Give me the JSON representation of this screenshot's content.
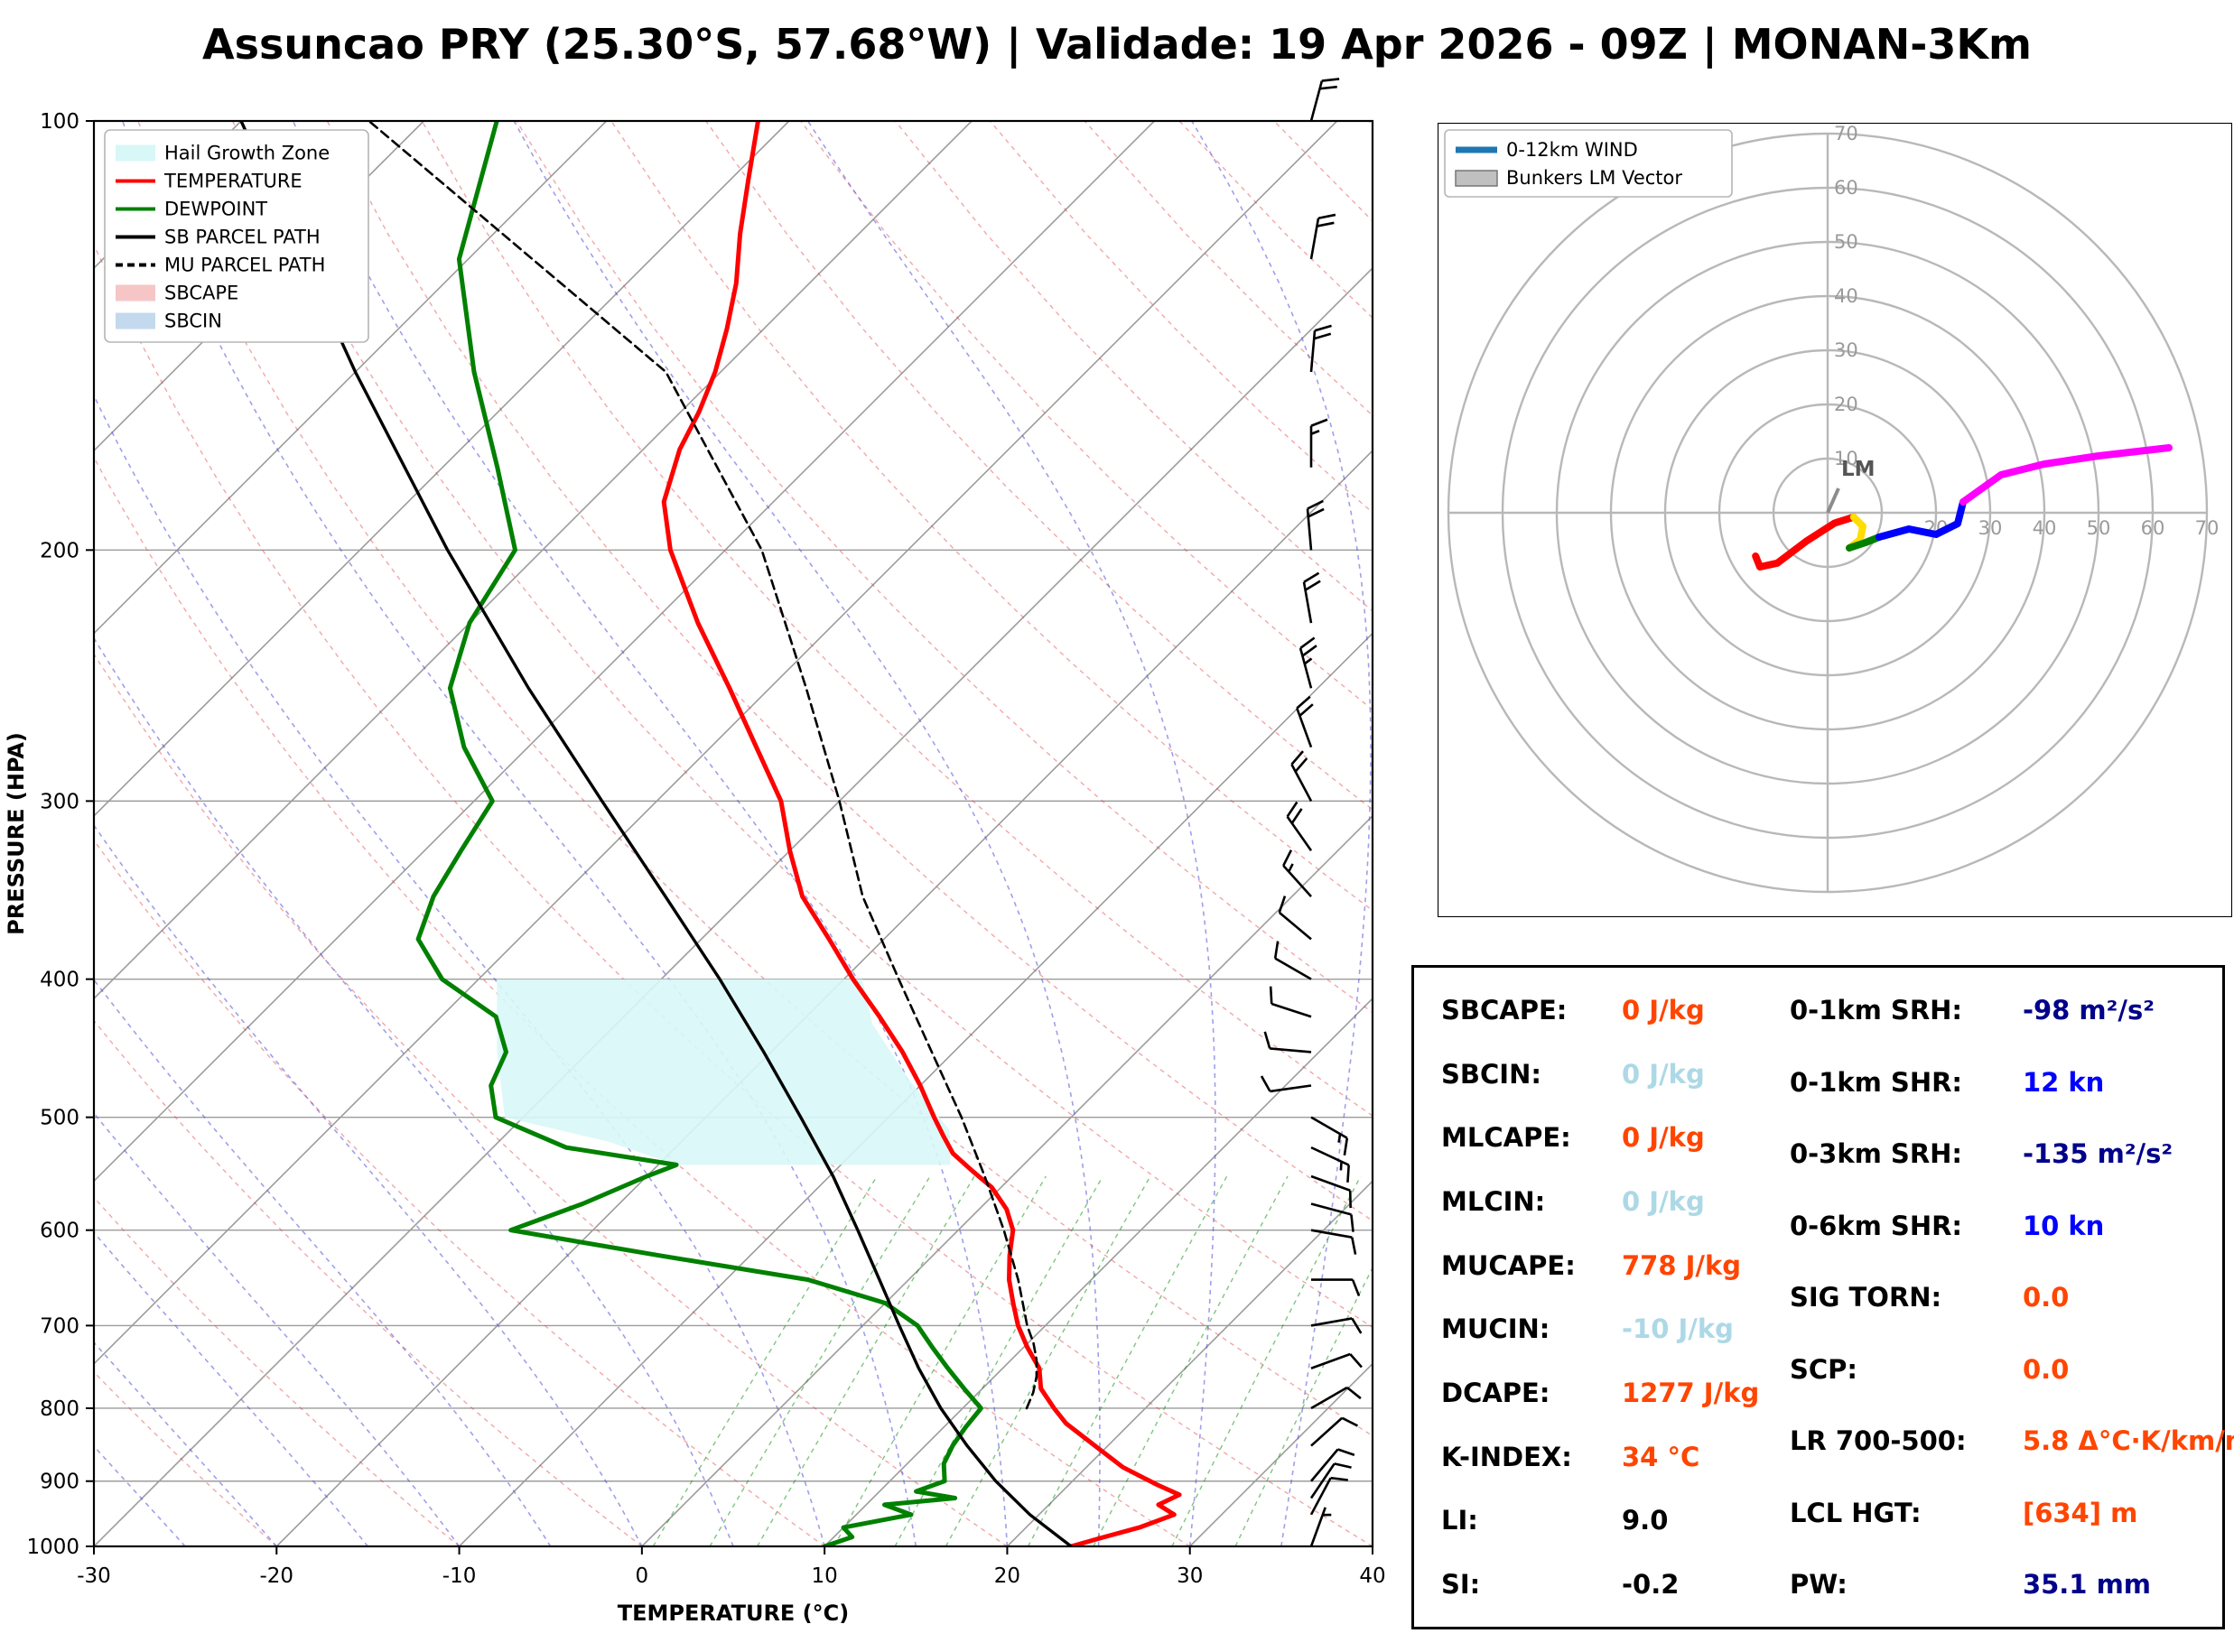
{
  "title": "Assuncao PRY (25.30°S, 57.68°W) | Validade: 19 Apr 2026 - 09Z | MONAN-3Km",
  "colors": {
    "temperature": "#ff0000",
    "dewpoint": "#008000",
    "parcel": "#000000",
    "hail_zone": "#d8f7f7",
    "sbcape_patch": "#f6c6c6",
    "sbcin_patch": "#c3d9ee",
    "orange_value": "#ff4500",
    "lightblue_value": "#add8e6",
    "navy_value": "#00008b",
    "blue_value": "#0000ff",
    "grid_gray": "#999999",
    "hodo_blue": "#1f77b4"
  },
  "chart_data": [
    {
      "type": "line",
      "title": "Skew-T Log-P sounding",
      "xlabel": "TEMPERATURE (°C)",
      "ylabel": "PRESSURE (HPA)",
      "xlim": [
        -30,
        40
      ],
      "ylim": [
        1000,
        100
      ],
      "x_ticks": [
        -30,
        -20,
        -10,
        0,
        10,
        20,
        30,
        40
      ],
      "y_ticks": [
        100,
        200,
        300,
        400,
        500,
        600,
        700,
        800,
        900,
        1000
      ],
      "skew_deg": 45,
      "grid": true,
      "legend_position": "upper left",
      "legend": [
        {
          "label": "Hail Growth Zone",
          "type": "patch",
          "color": "#d8f7f7"
        },
        {
          "label": "TEMPERATURE",
          "type": "line",
          "color": "#ff0000"
        },
        {
          "label": "DEWPOINT",
          "type": "line",
          "color": "#008000"
        },
        {
          "label": "SB PARCEL PATH",
          "type": "line",
          "color": "#000000"
        },
        {
          "label": "MU PARCEL PATH",
          "type": "dashed",
          "color": "#000000"
        },
        {
          "label": "SBCAPE",
          "type": "patch",
          "color": "#f6c6c6"
        },
        {
          "label": "SBCIN",
          "type": "patch",
          "color": "#c3d9ee"
        }
      ],
      "series": [
        {
          "name": "TEMPERATURE",
          "color": "#ff0000",
          "style": "solid",
          "width": 5,
          "points": [
            [
              1000,
              23.5
            ],
            [
              985,
              24.8
            ],
            [
              970,
              26.2
            ],
            [
              950,
              27.4
            ],
            [
              935,
              26.0
            ],
            [
              920,
              26.6
            ],
            [
              905,
              24.8
            ],
            [
              880,
              22.0
            ],
            [
              850,
              19.3
            ],
            [
              820,
              16.5
            ],
            [
              800,
              15.0
            ],
            [
              775,
              13.2
            ],
            [
              750,
              12.0
            ],
            [
              725,
              10.2
            ],
            [
              700,
              8.5
            ],
            [
              675,
              7.0
            ],
            [
              650,
              5.5
            ],
            [
              625,
              4.2
            ],
            [
              600,
              3.0
            ],
            [
              580,
              1.5
            ],
            [
              560,
              -0.5
            ],
            [
              545,
              -2.5
            ],
            [
              530,
              -4.5
            ],
            [
              515,
              -6.0
            ],
            [
              500,
              -7.5
            ],
            [
              475,
              -10.0
            ],
            [
              450,
              -12.8
            ],
            [
              425,
              -16.0
            ],
            [
              400,
              -19.5
            ],
            [
              375,
              -23.0
            ],
            [
              350,
              -26.8
            ],
            [
              325,
              -30.0
            ],
            [
              300,
              -33.2
            ],
            [
              275,
              -37.5
            ],
            [
              250,
              -42.2
            ],
            [
              225,
              -47.5
            ],
            [
              200,
              -53.0
            ],
            [
              185,
              -56.0
            ],
            [
              170,
              -58.0
            ],
            [
              160,
              -59.0
            ],
            [
              150,
              -60.3
            ],
            [
              140,
              -62.0
            ],
            [
              130,
              -64.0
            ],
            [
              120,
              -66.5
            ],
            [
              110,
              -69.0
            ],
            [
              100,
              -71.7
            ]
          ]
        },
        {
          "name": "DEWPOINT",
          "color": "#008000",
          "style": "solid",
          "width": 5,
          "points": [
            [
              1000,
              10.0
            ],
            [
              985,
              11.0
            ],
            [
              970,
              10.0
            ],
            [
              950,
              13.0
            ],
            [
              935,
              11.0
            ],
            [
              925,
              14.5
            ],
            [
              915,
              12.0
            ],
            [
              900,
              13.0
            ],
            [
              875,
              12.0
            ],
            [
              850,
              11.5
            ],
            [
              825,
              11.2
            ],
            [
              800,
              11.0
            ],
            [
              775,
              9.0
            ],
            [
              750,
              7.0
            ],
            [
              725,
              5.0
            ],
            [
              700,
              3.0
            ],
            [
              675,
              0.0
            ],
            [
              650,
              -5.5
            ],
            [
              625,
              -15.0
            ],
            [
              600,
              -24.5
            ],
            [
              575,
              -22.0
            ],
            [
              550,
              -20.0
            ],
            [
              540,
              -19.0
            ],
            [
              525,
              -26.0
            ],
            [
              500,
              -31.5
            ],
            [
              475,
              -33.5
            ],
            [
              450,
              -34.5
            ],
            [
              425,
              -37.0
            ],
            [
              400,
              -42.0
            ],
            [
              375,
              -45.5
            ],
            [
              350,
              -47.0
            ],
            [
              325,
              -48.0
            ],
            [
              300,
              -49.0
            ],
            [
              275,
              -53.5
            ],
            [
              250,
              -57.5
            ],
            [
              225,
              -60.0
            ],
            [
              200,
              -61.5
            ],
            [
              175,
              -67.0
            ],
            [
              150,
              -73.5
            ],
            [
              125,
              -80.5
            ],
            [
              100,
              -86.0
            ]
          ]
        },
        {
          "name": "SB PARCEL PATH",
          "color": "#000000",
          "style": "solid",
          "width": 3.4,
          "points": [
            [
              1000,
              23.5
            ],
            [
              950,
              19.5
            ],
            [
              900,
              15.8
            ],
            [
              850,
              12.3
            ],
            [
              800,
              8.8
            ],
            [
              750,
              5.4
            ],
            [
              700,
              2.0
            ],
            [
              650,
              -1.6
            ],
            [
              600,
              -5.5
            ],
            [
              550,
              -9.8
            ],
            [
              500,
              -14.8
            ],
            [
              450,
              -20.4
            ],
            [
              400,
              -26.8
            ],
            [
              350,
              -34.3
            ],
            [
              300,
              -43.0
            ],
            [
              250,
              -53.2
            ],
            [
              200,
              -65.2
            ],
            [
              150,
              -80.0
            ],
            [
              100,
              -100.0
            ]
          ]
        },
        {
          "name": "MU PARCEL PATH",
          "color": "#000000",
          "style": "dashed",
          "width": 2.6,
          "points": [
            [
              800,
              13.5
            ],
            [
              780,
              13.0
            ],
            [
              760,
              12.3
            ],
            [
              740,
              11.4
            ],
            [
              720,
              10.3
            ],
            [
              700,
              9.0
            ],
            [
              650,
              6.0
            ],
            [
              600,
              2.5
            ],
            [
              550,
              -1.5
            ],
            [
              500,
              -6.0
            ],
            [
              450,
              -11.2
            ],
            [
              400,
              -17.0
            ],
            [
              350,
              -23.5
            ],
            [
              300,
              -30.0
            ],
            [
              250,
              -38.0
            ],
            [
              200,
              -48.0
            ],
            [
              150,
              -63.0
            ],
            [
              100,
              -93.0
            ]
          ]
        }
      ],
      "hail_growth_zone": {
        "color": "#d8f7f7",
        "points": [
          [
            400,
            -39
          ],
          [
            400,
            -19
          ],
          [
            430,
            -16
          ],
          [
            470,
            -11
          ],
          [
            510,
            -6
          ],
          [
            540,
            -4
          ],
          [
            540,
            -19
          ],
          [
            520,
            -24
          ],
          [
            500,
            -31
          ],
          [
            450,
            -35
          ]
        ]
      },
      "wind_barbs": [
        [
          100,
          22,
          15
        ],
        [
          125,
          20,
          10
        ],
        [
          150,
          18,
          5
        ],
        [
          175,
          15,
          360
        ],
        [
          200,
          20,
          355
        ],
        [
          225,
          22,
          350
        ],
        [
          250,
          25,
          345
        ],
        [
          275,
          22,
          340
        ],
        [
          300,
          20,
          332
        ],
        [
          325,
          18,
          325
        ],
        [
          350,
          15,
          318
        ],
        [
          375,
          12,
          310
        ],
        [
          400,
          10,
          300
        ],
        [
          425,
          10,
          288
        ],
        [
          450,
          10,
          275
        ],
        [
          475,
          12,
          262
        ],
        [
          500,
          15,
          120
        ],
        [
          525,
          15,
          115
        ],
        [
          550,
          12,
          110
        ],
        [
          575,
          10,
          105
        ],
        [
          600,
          10,
          100
        ],
        [
          650,
          8,
          90
        ],
        [
          700,
          10,
          80
        ],
        [
          750,
          8,
          70
        ],
        [
          800,
          8,
          60
        ],
        [
          850,
          10,
          48
        ],
        [
          900,
          10,
          40
        ],
        [
          925,
          8,
          34
        ],
        [
          950,
          8,
          28
        ],
        [
          1000,
          5,
          20
        ]
      ]
    },
    {
      "type": "line",
      "title": "Hodograph",
      "ring_unit": "kn",
      "rings": [
        10,
        20,
        30,
        40,
        50,
        60,
        70
      ],
      "vertical_ring_labels": [
        "10",
        "20",
        "30",
        "40",
        "50",
        "60",
        "70"
      ],
      "horizontal_ring_labels": [
        "20",
        "30",
        "40",
        "50",
        "60",
        "70"
      ],
      "legend": [
        {
          "label": "0-12km WIND",
          "type": "line",
          "color": "#1f77b4"
        },
        {
          "label": "Bunkers LM Vector",
          "type": "patch",
          "color": "#c0c0c0"
        }
      ],
      "segments": [
        {
          "color": "#ff0000",
          "points": [
            [
              4.8,
              -0.8
            ],
            [
              1.3,
              -1.9
            ],
            [
              -4,
              -5.3
            ],
            [
              -9.3,
              -9.3
            ],
            [
              -12.5,
              -10
            ],
            [
              -13.3,
              -8
            ]
          ]
        },
        {
          "color": "#ffdd00",
          "points": [
            [
              4.8,
              -0.8
            ],
            [
              6.5,
              -2.5
            ],
            [
              6,
              -5
            ],
            [
              4,
              -6.5
            ]
          ]
        },
        {
          "color": "#008000",
          "points": [
            [
              4,
              -6.5
            ],
            [
              7,
              -5.5
            ],
            [
              9.5,
              -4.5
            ]
          ]
        },
        {
          "color": "#0000ff",
          "points": [
            [
              9.5,
              -4.5
            ],
            [
              15,
              -3
            ],
            [
              20,
              -4
            ],
            [
              24,
              -2
            ],
            [
              25,
              2
            ]
          ]
        },
        {
          "color": "#ff00ff",
          "points": [
            [
              25,
              2
            ],
            [
              32,
              7
            ],
            [
              40,
              9
            ],
            [
              50,
              10.5
            ],
            [
              63,
              12
            ]
          ]
        }
      ],
      "lm_vector": {
        "from": [
          0,
          0
        ],
        "to": [
          2,
          4.5
        ]
      },
      "lm_label": {
        "text": "LM",
        "u": 2.5,
        "v": 6.8
      }
    }
  ],
  "stats": {
    "left": [
      {
        "label": "SBCAPE:",
        "value": "0 J/kg",
        "color": "#ff4500"
      },
      {
        "label": "SBCIN:",
        "value": "0 J/kg",
        "color": "#add8e6"
      },
      {
        "label": "MLCAPE:",
        "value": "0 J/kg",
        "color": "#ff4500"
      },
      {
        "label": "MLCIN:",
        "value": "0 J/kg",
        "color": "#add8e6"
      },
      {
        "label": "MUCAPE:",
        "value": "778 J/kg",
        "color": "#ff4500"
      },
      {
        "label": "MUCIN:",
        "value": "-10 J/kg",
        "color": "#add8e6"
      },
      {
        "label": "DCAPE:",
        "value": "1277 J/kg",
        "color": "#ff4500"
      },
      {
        "label": "K-INDEX:",
        "value": "34 °C",
        "color": "#ff4500"
      },
      {
        "label": "LI:",
        "value": "9.0",
        "color": "#000000"
      },
      {
        "label": "SI:",
        "value": "-0.2",
        "color": "#000000"
      }
    ],
    "right": [
      {
        "label": "0-1km SRH:",
        "value": "-98 m²/s²",
        "color": "#00008b"
      },
      {
        "label": "0-1km SHR:",
        "value": "12 kn",
        "color": "#0000ff"
      },
      {
        "label": "0-3km SRH:",
        "value": "-135 m²/s²",
        "color": "#00008b"
      },
      {
        "label": "0-6km SHR:",
        "value": "10 kn",
        "color": "#0000ff"
      },
      {
        "label": "SIG TORN:",
        "value": "0.0",
        "color": "#ff4500"
      },
      {
        "label": "SCP:",
        "value": "0.0",
        "color": "#ff4500"
      },
      {
        "label": "LR 700-500:",
        "value": "5.8 Δ°C·K/km/m",
        "color": "#ff4500"
      },
      {
        "label": "LCL HGT:",
        "value": "[634] m",
        "color": "#ff4500"
      },
      {
        "label": "PW:",
        "value": "35.1 mm",
        "color": "#00008b"
      }
    ]
  }
}
